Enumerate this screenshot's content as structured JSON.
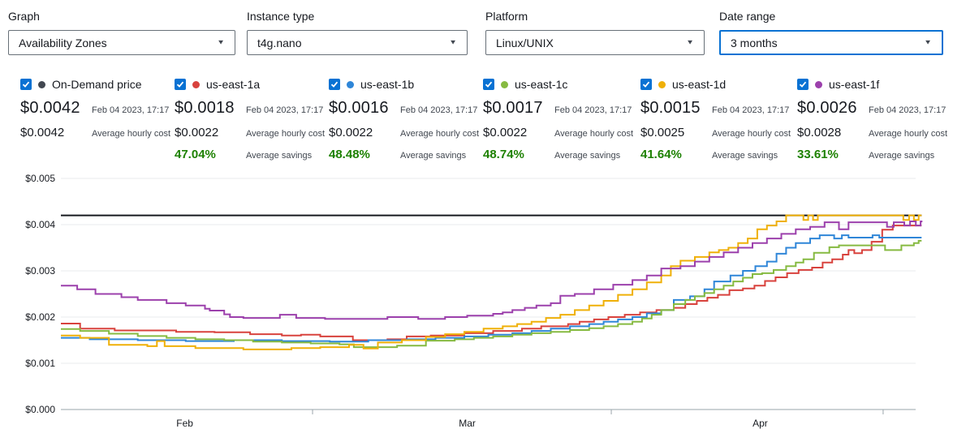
{
  "controls": {
    "graph": {
      "label": "Graph",
      "value": "Availability Zones"
    },
    "instance": {
      "label": "Instance type",
      "value": "t4g.nano"
    },
    "platform": {
      "label": "Platform",
      "value": "Linux/UNIX"
    },
    "daterange": {
      "label": "Date range",
      "value": "3 months"
    }
  },
  "legend": {
    "items": [
      {
        "name": "On-Demand price",
        "color": "#414750",
        "price": "$0.0042",
        "price_date": "Feb 04 2023, 17:17",
        "avg": "$0.0042",
        "avg_label": "Average hourly cost",
        "savings": "",
        "savings_label": ""
      },
      {
        "name": "us-east-1a",
        "color": "#d8423d",
        "price": "$0.0018",
        "price_date": "Feb 04 2023, 17:17",
        "avg": "$0.0022",
        "avg_label": "Average hourly cost",
        "savings": "47.04%",
        "savings_label": "Average savings"
      },
      {
        "name": "us-east-1b",
        "color": "#2f86d8",
        "price": "$0.0016",
        "price_date": "Feb 04 2023, 17:17",
        "avg": "$0.0022",
        "avg_label": "Average hourly cost",
        "savings": "48.48%",
        "savings_label": "Average savings"
      },
      {
        "name": "us-east-1c",
        "color": "#86ba41",
        "price": "$0.0017",
        "price_date": "Feb 04 2023, 17:17",
        "avg": "$0.0022",
        "avg_label": "Average hourly cost",
        "savings": "48.74%",
        "savings_label": "Average savings"
      },
      {
        "name": "us-east-1d",
        "color": "#efb008",
        "price": "$0.0015",
        "price_date": "Feb 04 2023, 17:17",
        "avg": "$0.0025",
        "avg_label": "Average hourly cost",
        "savings": "41.64%",
        "savings_label": "Average savings"
      },
      {
        "name": "us-east-1f",
        "color": "#9c40ac",
        "price": "$0.0026",
        "price_date": "Feb 04 2023, 17:17",
        "avg": "$0.0028",
        "avg_label": "Average hourly cost",
        "savings": "33.61%",
        "savings_label": "Average savings"
      }
    ]
  },
  "chart_data": {
    "type": "line",
    "interpolation": "step-after",
    "x_unit": "days",
    "x_range": [
      0,
      89.6
    ],
    "ylim": [
      0,
      0.005
    ],
    "y_ticks": [
      {
        "value": 0.0,
        "label": "$0.000"
      },
      {
        "value": 0.001,
        "label": "$0.001"
      },
      {
        "value": 0.002,
        "label": "$0.002"
      },
      {
        "value": 0.003,
        "label": "$0.003"
      },
      {
        "value": 0.004,
        "label": "$0.004"
      },
      {
        "value": 0.005,
        "label": "$0.005"
      }
    ],
    "x_labels": [
      {
        "day": 12.9,
        "label": "Feb"
      },
      {
        "day": 42.3,
        "label": "Mar"
      },
      {
        "day": 72.8,
        "label": "Apr"
      }
    ],
    "x_tick_days": [
      26.2,
      57.3,
      85.6
    ],
    "grid": "horizontal",
    "legend_position": "top",
    "series": [
      {
        "name": "On-Demand price",
        "color": "#16191f",
        "width": 2,
        "points": [
          [
            0,
            0.0042
          ],
          [
            89.6,
            0.0042
          ]
        ]
      },
      {
        "name": "us-east-1a",
        "color": "#d8423d",
        "width": 2,
        "points": [
          [
            0,
            0.00186
          ],
          [
            2,
            0.00175
          ],
          [
            5.6,
            0.00171
          ],
          [
            12,
            0.00168
          ],
          [
            16,
            0.00167
          ],
          [
            19.7,
            0.00163
          ],
          [
            23,
            0.0016
          ],
          [
            25,
            0.00162
          ],
          [
            27,
            0.00158
          ],
          [
            30.4,
            0.0015
          ],
          [
            34,
            0.00152
          ],
          [
            36,
            0.00158
          ],
          [
            38.5,
            0.0016
          ],
          [
            42,
            0.00165
          ],
          [
            45,
            0.0017
          ],
          [
            48,
            0.00175
          ],
          [
            50,
            0.0018
          ],
          [
            52.8,
            0.00185
          ],
          [
            54,
            0.0019
          ],
          [
            55.5,
            0.00195
          ],
          [
            57,
            0.002
          ],
          [
            58.7,
            0.00205
          ],
          [
            60.3,
            0.0021
          ],
          [
            62,
            0.00215
          ],
          [
            63.8,
            0.0022
          ],
          [
            65,
            0.00228
          ],
          [
            66.2,
            0.00235
          ],
          [
            67.3,
            0.00242
          ],
          [
            68.4,
            0.00248
          ],
          [
            69.6,
            0.00258
          ],
          [
            71,
            0.00262
          ],
          [
            72.2,
            0.00268
          ],
          [
            73.3,
            0.00278
          ],
          [
            74.4,
            0.00286
          ],
          [
            75.6,
            0.00295
          ],
          [
            76.8,
            0.00302
          ],
          [
            78.2,
            0.00307
          ],
          [
            79.3,
            0.00318
          ],
          [
            80.3,
            0.00325
          ],
          [
            81.4,
            0.00335
          ],
          [
            82,
            0.00345
          ],
          [
            82.6,
            0.00338
          ],
          [
            83.4,
            0.00345
          ],
          [
            84.4,
            0.00363
          ],
          [
            85.5,
            0.00389
          ],
          [
            86.6,
            0.00398
          ],
          [
            89.6,
            0.00398
          ]
        ]
      },
      {
        "name": "us-east-1b",
        "color": "#2f86d8",
        "width": 2,
        "points": [
          [
            0,
            0.00155
          ],
          [
            3,
            0.00152
          ],
          [
            8,
            0.0015
          ],
          [
            13,
            0.00148
          ],
          [
            18,
            0.0015
          ],
          [
            23,
            0.00148
          ],
          [
            28,
            0.00147
          ],
          [
            32,
            0.0015
          ],
          [
            36,
            0.00152
          ],
          [
            39,
            0.00155
          ],
          [
            42,
            0.00158
          ],
          [
            44.5,
            0.00162
          ],
          [
            47,
            0.00165
          ],
          [
            49,
            0.0017
          ],
          [
            51,
            0.00175
          ],
          [
            53,
            0.0018
          ],
          [
            55,
            0.00185
          ],
          [
            56.5,
            0.0019
          ],
          [
            58,
            0.00195
          ],
          [
            59.5,
            0.002
          ],
          [
            61,
            0.00208
          ],
          [
            62.5,
            0.00215
          ],
          [
            63.8,
            0.00237
          ],
          [
            65.5,
            0.00245
          ],
          [
            67,
            0.0026
          ],
          [
            68,
            0.00277
          ],
          [
            69.7,
            0.0029
          ],
          [
            71,
            0.003
          ],
          [
            72.3,
            0.0031
          ],
          [
            73.5,
            0.0032
          ],
          [
            74.5,
            0.00337
          ],
          [
            75.5,
            0.0035
          ],
          [
            76.5,
            0.0036
          ],
          [
            78,
            0.0037
          ],
          [
            79,
            0.00377
          ],
          [
            80.5,
            0.0037
          ],
          [
            81.3,
            0.00377
          ],
          [
            82,
            0.00372
          ],
          [
            84.5,
            0.00377
          ],
          [
            85.2,
            0.00372
          ],
          [
            89.6,
            0.00372
          ]
        ]
      },
      {
        "name": "us-east-1c",
        "color": "#86ba41",
        "width": 2,
        "points": [
          [
            0,
            0.00174
          ],
          [
            2,
            0.0017
          ],
          [
            5,
            0.00164
          ],
          [
            8,
            0.00159
          ],
          [
            11,
            0.00155
          ],
          [
            14,
            0.00152
          ],
          [
            17,
            0.0015
          ],
          [
            20,
            0.00147
          ],
          [
            23,
            0.00145
          ],
          [
            26,
            0.00143
          ],
          [
            29,
            0.00141
          ],
          [
            30.5,
            0.00135
          ],
          [
            35,
            0.00138
          ],
          [
            38,
            0.00149
          ],
          [
            41,
            0.00152
          ],
          [
            43,
            0.00155
          ],
          [
            45,
            0.00158
          ],
          [
            47,
            0.00162
          ],
          [
            49,
            0.00165
          ],
          [
            51,
            0.00168
          ],
          [
            53,
            0.00172
          ],
          [
            55,
            0.00176
          ],
          [
            56.5,
            0.0018
          ],
          [
            58,
            0.00185
          ],
          [
            59.5,
            0.0019
          ],
          [
            60.5,
            0.00197
          ],
          [
            61.5,
            0.00205
          ],
          [
            62.5,
            0.00215
          ],
          [
            63.8,
            0.00228
          ],
          [
            65,
            0.00237
          ],
          [
            66,
            0.00245
          ],
          [
            67,
            0.00252
          ],
          [
            68,
            0.0026
          ],
          [
            69,
            0.00268
          ],
          [
            70,
            0.00277
          ],
          [
            71,
            0.00285
          ],
          [
            72,
            0.00293
          ],
          [
            73,
            0.00295
          ],
          [
            74.2,
            0.00302
          ],
          [
            75.5,
            0.0031
          ],
          [
            76.5,
            0.00318
          ],
          [
            77.3,
            0.00325
          ],
          [
            78.4,
            0.00339
          ],
          [
            80,
            0.00351
          ],
          [
            81,
            0.00355
          ],
          [
            85.8,
            0.00345
          ],
          [
            87.5,
            0.00355
          ],
          [
            88.8,
            0.0036
          ],
          [
            89.3,
            0.00365
          ],
          [
            89.6,
            0.00365
          ]
        ]
      },
      {
        "name": "us-east-1d",
        "color": "#efb008",
        "width": 2,
        "points": [
          [
            0,
            0.0016
          ],
          [
            2,
            0.00155
          ],
          [
            5,
            0.0014
          ],
          [
            9,
            0.00137
          ],
          [
            10,
            0.00148
          ],
          [
            10.8,
            0.00137
          ],
          [
            14,
            0.00133
          ],
          [
            19,
            0.0013
          ],
          [
            24,
            0.00133
          ],
          [
            27,
            0.00135
          ],
          [
            30,
            0.0014
          ],
          [
            31.5,
            0.00132
          ],
          [
            33,
            0.00145
          ],
          [
            35.5,
            0.0015
          ],
          [
            38,
            0.00157
          ],
          [
            40,
            0.00163
          ],
          [
            42,
            0.00168
          ],
          [
            44,
            0.00175
          ],
          [
            46,
            0.0018
          ],
          [
            47.5,
            0.00185
          ],
          [
            49,
            0.0019
          ],
          [
            50.5,
            0.00198
          ],
          [
            52,
            0.00205
          ],
          [
            53.5,
            0.00215
          ],
          [
            55,
            0.00225
          ],
          [
            56.5,
            0.00235
          ],
          [
            58,
            0.00248
          ],
          [
            59.5,
            0.0026
          ],
          [
            61,
            0.00275
          ],
          [
            62.5,
            0.0029
          ],
          [
            63.5,
            0.0031
          ],
          [
            64.5,
            0.00322
          ],
          [
            66,
            0.0033
          ],
          [
            67.5,
            0.0034
          ],
          [
            68.5,
            0.00345
          ],
          [
            69.5,
            0.0035
          ],
          [
            70.5,
            0.0036
          ],
          [
            71.5,
            0.0037
          ],
          [
            72.5,
            0.0039
          ],
          [
            73.5,
            0.00398
          ],
          [
            74.5,
            0.00407
          ],
          [
            75.5,
            0.0042
          ],
          [
            77.3,
            0.0041
          ],
          [
            77.8,
            0.0042
          ],
          [
            78.3,
            0.0041
          ],
          [
            78.8,
            0.0042
          ],
          [
            87.2,
            0.0042
          ],
          [
            87.7,
            0.0041
          ],
          [
            88.3,
            0.0042
          ],
          [
            88.8,
            0.0041
          ],
          [
            89.3,
            0.0042
          ],
          [
            89.6,
            0.0042
          ]
        ]
      },
      {
        "name": "us-east-1f",
        "color": "#9c40ac",
        "width": 2,
        "points": [
          [
            0,
            0.00268
          ],
          [
            1.7,
            0.0026
          ],
          [
            3.6,
            0.0025
          ],
          [
            6.3,
            0.00243
          ],
          [
            8,
            0.00237
          ],
          [
            11,
            0.0023
          ],
          [
            13,
            0.00225
          ],
          [
            15,
            0.00218
          ],
          [
            15.5,
            0.00214
          ],
          [
            17,
            0.00206
          ],
          [
            17.6,
            0.002
          ],
          [
            19,
            0.00198
          ],
          [
            22.8,
            0.00205
          ],
          [
            24.5,
            0.00198
          ],
          [
            27.5,
            0.00196
          ],
          [
            34,
            0.002
          ],
          [
            37.2,
            0.00196
          ],
          [
            40,
            0.002
          ],
          [
            42.3,
            0.00203
          ],
          [
            45,
            0.00207
          ],
          [
            46,
            0.0021
          ],
          [
            47,
            0.00215
          ],
          [
            48.3,
            0.0022
          ],
          [
            49.5,
            0.00225
          ],
          [
            51,
            0.0023
          ],
          [
            52,
            0.00246
          ],
          [
            53.5,
            0.0025
          ],
          [
            55.5,
            0.0026
          ],
          [
            57.5,
            0.0027
          ],
          [
            59.5,
            0.0028
          ],
          [
            61,
            0.0029
          ],
          [
            62.5,
            0.00305
          ],
          [
            64.5,
            0.0031
          ],
          [
            66,
            0.0032
          ],
          [
            67.5,
            0.0033
          ],
          [
            69,
            0.0034
          ],
          [
            70.5,
            0.0035
          ],
          [
            72,
            0.0036
          ],
          [
            73.5,
            0.0037
          ],
          [
            75,
            0.0038
          ],
          [
            76.5,
            0.0039
          ],
          [
            78,
            0.00395
          ],
          [
            79.5,
            0.00405
          ],
          [
            81,
            0.0039
          ],
          [
            82,
            0.00405
          ],
          [
            85.5,
            0.00405
          ],
          [
            86,
            0.00395
          ],
          [
            86.7,
            0.00405
          ],
          [
            87.8,
            0.00398
          ],
          [
            88.4,
            0.00407
          ],
          [
            89,
            0.00398
          ],
          [
            89.5,
            0.00407
          ],
          [
            89.6,
            0.00405
          ]
        ]
      }
    ]
  }
}
